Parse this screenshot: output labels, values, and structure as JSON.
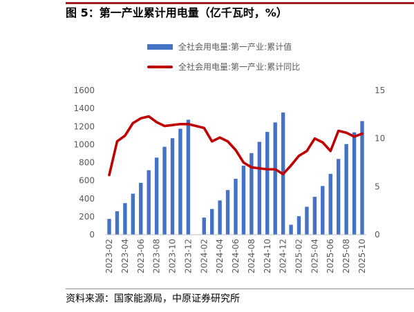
{
  "accent_color": "#9B1B1E",
  "figure": {
    "title": "图 5：第一产业累计用电量（亿千瓦时，%）",
    "source": "资料来源：国家能源局，中原证券研究所"
  },
  "chart_data": {
    "type": "bar",
    "title": "图 5：第一产业累计用电量（亿千瓦时，%）",
    "x": [
      "2023-02",
      "2023-03",
      "2023-04",
      "2023-05",
      "2023-06",
      "2023-07",
      "2023-08",
      "2023-09",
      "2023-10",
      "2023-11",
      "2023-12",
      "2024-01",
      "2024-02",
      "2024-03",
      "2024-04",
      "2024-05",
      "2024-06",
      "2024-07",
      "2024-08",
      "2024-09",
      "2024-10",
      "2024-11",
      "2024-12",
      "2025-01",
      "2025-02",
      "2025-03",
      "2025-04",
      "2025-05",
      "2025-06",
      "2025-07",
      "2025-08",
      "2025-09",
      "2025-10"
    ],
    "series": [
      {
        "name": "全社会用电量:第一产业:累计值",
        "type": "bar",
        "axis": "left",
        "color": "#4472C4",
        "values": [
          175,
          260,
          350,
          455,
          575,
          715,
          855,
          975,
          1070,
          1175,
          1275,
          null,
          190,
          285,
          380,
          495,
          620,
          765,
          905,
          1030,
          1140,
          1245,
          1355,
          110,
          205,
          310,
          420,
          540,
          675,
          840,
          1005,
          1135,
          1260
        ]
      },
      {
        "name": "全社会用电量:第一产业:累计同比",
        "type": "line",
        "axis": "right",
        "color": "#C00000",
        "values": [
          6.2,
          9.7,
          10.3,
          11.6,
          12.1,
          12.3,
          11.7,
          11.3,
          11.4,
          11.5,
          11.5,
          null,
          11.1,
          9.7,
          10.1,
          9.7,
          8.8,
          7.5,
          7.0,
          6.9,
          6.8,
          6.8,
          6.3,
          7.2,
          8.2,
          8.7,
          10.0,
          9.6,
          8.7,
          10.8,
          10.6,
          10.2,
          10.5
        ]
      }
    ],
    "left_axis": {
      "ylim": [
        0,
        1600
      ],
      "ticks": [
        0,
        200,
        400,
        600,
        800,
        1000,
        1200,
        1400,
        1600
      ]
    },
    "right_axis": {
      "ylim": [
        0,
        15
      ],
      "ticks": [
        0,
        5,
        10,
        15
      ]
    },
    "x_label_every": 2,
    "grid": false,
    "legend": "top"
  }
}
